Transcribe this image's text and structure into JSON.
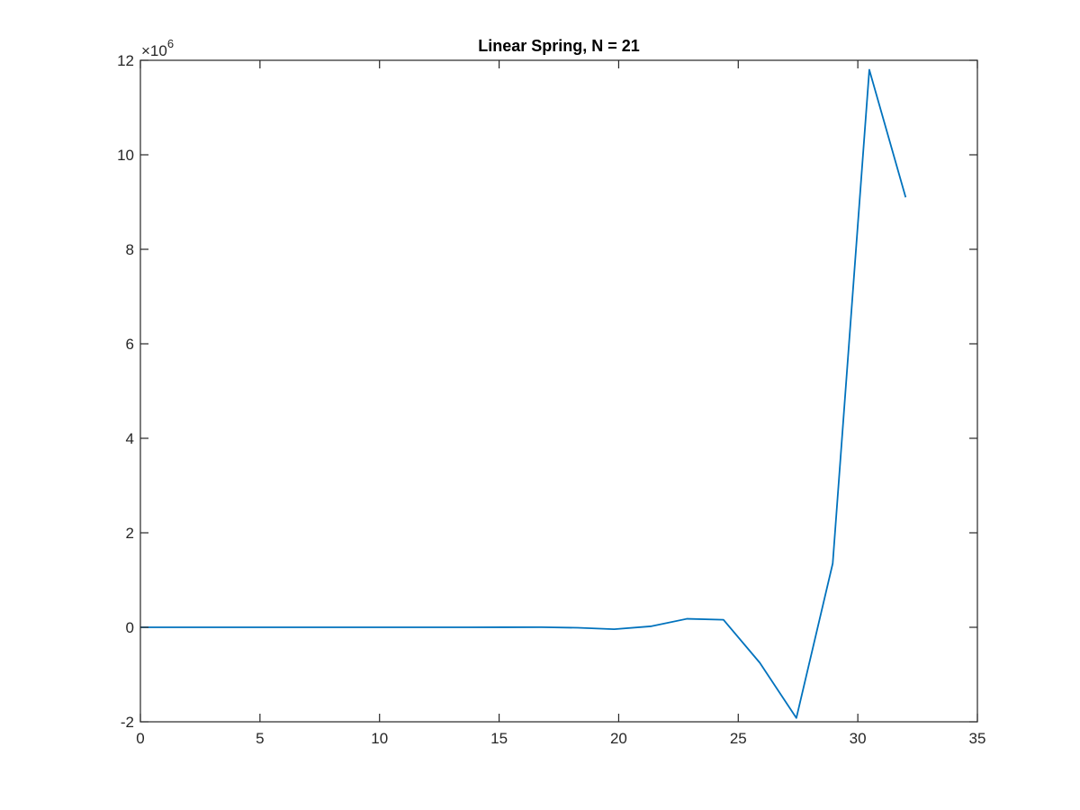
{
  "chart_data": {
    "type": "line",
    "title": "Linear Spring, N = 21",
    "xlabel": "",
    "ylabel": "",
    "xlim": [
      0,
      35
    ],
    "ylim": [
      -2,
      12
    ],
    "xticks": [
      0,
      5,
      10,
      15,
      20,
      25,
      30,
      35
    ],
    "yticks": [
      -2,
      0,
      2,
      4,
      6,
      8,
      10,
      12
    ],
    "xtick_labels": [
      "0",
      "5",
      "10",
      "15",
      "20",
      "25",
      "30",
      "35"
    ],
    "ytick_labels": [
      "-2",
      "0",
      "2",
      "4",
      "6",
      "8",
      "10",
      "12"
    ],
    "y_exponent_base": "×10",
    "y_exponent_power": "6",
    "y_multiplier": 1000000,
    "grid": false,
    "series": [
      {
        "color": "#0072BD",
        "x": [
          0,
          1.52,
          3.05,
          4.57,
          6.1,
          7.62,
          9.14,
          10.67,
          12.19,
          13.71,
          15.24,
          16.76,
          18.29,
          19.81,
          21.33,
          22.86,
          24.38,
          25.9,
          27.43,
          28.95,
          30.48,
          32.0
        ],
        "y": [
          0,
          0,
          0,
          0,
          0,
          0,
          0,
          0,
          0,
          0,
          0.001,
          0.002,
          -0.01,
          -0.04,
          0.02,
          0.18,
          0.16,
          -0.75,
          -1.92,
          1.35,
          11.8,
          9.1
        ]
      }
    ]
  }
}
